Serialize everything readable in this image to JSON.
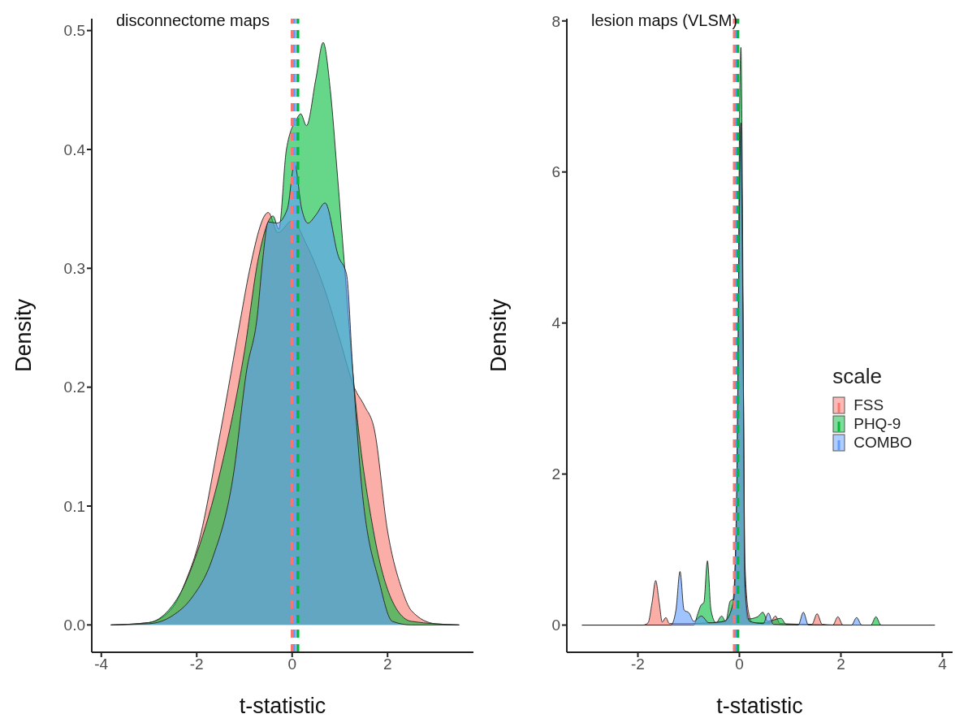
{
  "chart_data": [
    {
      "type": "area",
      "title": "disconnectome maps",
      "xlabel": "t-statistic",
      "ylabel": "Density",
      "xlim": [
        -4.2,
        3.8
      ],
      "xticks": [
        -4,
        -2,
        0,
        2
      ],
      "ylim": [
        -0.023,
        0.51
      ],
      "yticks": [
        {
          "value": 0,
          "label": "0.0"
        },
        0.1,
        0.2,
        0.3,
        0.4,
        0.5
      ],
      "legend": false,
      "series": [
        {
          "color": "#f8766d",
          "x": [
            -3.8,
            -3,
            -2.5,
            -2.2,
            -2,
            -1.5,
            -1.07,
            -0.9,
            -0.5,
            -0.3,
            0,
            0.3,
            0.7,
            1,
            1.3,
            1.52,
            1.72,
            2,
            2.3,
            2.5,
            3,
            3.5
          ],
          "values": [
            0,
            0.002,
            0.015,
            0.04,
            0.063,
            0.163,
            0.26,
            0.297,
            0.347,
            0.33,
            0.34,
            0.32,
            0.28,
            0.24,
            0.2,
            0.184,
            0.165,
            0.079,
            0.03,
            0.012,
            0.001,
            0
          ]
        },
        {
          "color": "#00ba38",
          "x": [
            -3.8,
            -3,
            -2.6,
            -2.3,
            -2,
            -1.5,
            -1,
            -0.7,
            -0.4,
            -0.28,
            -0.12,
            0.1,
            0.18,
            0.3,
            0.5,
            0.65,
            0.8,
            0.94,
            1.09,
            1.3,
            1.7,
            2.1,
            2.5,
            3.5
          ],
          "values": [
            0,
            0.002,
            0.012,
            0.03,
            0.06,
            0.13,
            0.23,
            0.31,
            0.344,
            0.333,
            0.4,
            0.426,
            0.43,
            0.42,
            0.46,
            0.49,
            0.45,
            0.383,
            0.306,
            0.2,
            0.08,
            0.02,
            0.003,
            0
          ]
        },
        {
          "color": "#619cff",
          "x": [
            -3.8,
            -3,
            -2.5,
            -2.12,
            -1.67,
            -1.24,
            -0.95,
            -0.73,
            -0.62,
            -0.5,
            -0.32,
            -0.1,
            0.05,
            0.2,
            0.33,
            0.5,
            0.69,
            0.97,
            1.14,
            1.27,
            1.44,
            1.84,
            2.1,
            2.5,
            3.5
          ],
          "values": [
            0,
            0.001,
            0.008,
            0.022,
            0.056,
            0.124,
            0.215,
            0.26,
            0.306,
            0.339,
            0.338,
            0.35,
            0.388,
            0.35,
            0.338,
            0.345,
            0.355,
            0.31,
            0.295,
            0.215,
            0.124,
            0.034,
            0.003,
            0,
            0
          ]
        }
      ],
      "ref_lines": [
        {
          "axis": "x",
          "value": 0,
          "color": "#f8766d",
          "line_style": "dashed"
        },
        {
          "axis": "x",
          "value": 0.05,
          "color": "#619cff",
          "line_style": "dashed"
        },
        {
          "axis": "x",
          "value": 0.12,
          "color": "#00ba38",
          "line_style": "dashed"
        }
      ]
    },
    {
      "type": "area",
      "title": "lesion maps (VLSM)",
      "xlabel": "t-statistic",
      "ylabel": "Density",
      "xlim": [
        -3.4,
        4.2
      ],
      "xticks": [
        -2,
        0,
        2,
        4
      ],
      "ylim": [
        -0.36,
        8.03
      ],
      "yticks": [
        0,
        2,
        4,
        6,
        8
      ],
      "legend": "right",
      "legend_title": "scale",
      "series": [
        {
          "name": "FSS",
          "color": "#f8766d",
          "x": [
            -3.1,
            -1.9,
            -1.8,
            -1.72,
            -1.65,
            -1.58,
            -1.52,
            -1.45,
            -1.38,
            -1,
            -0.6,
            -0.3,
            -0.15,
            -0.05,
            0,
            0.03,
            0.07,
            0.11,
            0.18,
            0.26,
            0.6,
            0.71,
            0.8,
            1.43,
            1.53,
            1.63,
            1.84,
            1.94,
            2.04,
            3.85
          ],
          "values": [
            0,
            0,
            0.03,
            0.3,
            0.59,
            0.3,
            0.04,
            0.1,
            0.02,
            0.02,
            0.03,
            0.05,
            0.2,
            1.5,
            5,
            6.6,
            4,
            0.8,
            0.17,
            0.03,
            0.03,
            0.12,
            0.02,
            0.01,
            0.15,
            0.01,
            0,
            0.11,
            0,
            0
          ]
        },
        {
          "name": "PHQ-9",
          "color": "#00ba38",
          "x": [
            -3.1,
            -0.9,
            -0.82,
            -0.76,
            -0.7,
            -0.63,
            -0.56,
            -0.46,
            -0.35,
            -0.27,
            -0.18,
            -0.1,
            -0.03,
            0,
            0.03,
            0.07,
            0.1,
            0.16,
            0.36,
            0.46,
            0.56,
            0.82,
            0.92,
            2.59,
            2.69,
            2.79,
            3.85
          ],
          "values": [
            0,
            0,
            0.15,
            0.26,
            0.3,
            0.85,
            0.2,
            0.03,
            0.12,
            0.05,
            0.32,
            0.35,
            3,
            6.5,
            7.65,
            4.5,
            0.8,
            0.08,
            0.11,
            0.17,
            0.05,
            0.09,
            0.01,
            0,
            0.11,
            0,
            0
          ]
        },
        {
          "name": "COMBO",
          "color": "#619cff",
          "x": [
            -3.1,
            -1.35,
            -1.25,
            -1.17,
            -1.09,
            -0.99,
            -0.9,
            -0.75,
            -0.6,
            -0.3,
            -0.12,
            -0.05,
            0,
            0.03,
            0.07,
            0.11,
            0.2,
            0.47,
            0.57,
            0.67,
            1.16,
            1.26,
            1.36,
            2.21,
            2.31,
            2.41,
            3.85
          ],
          "values": [
            0,
            0,
            0.2,
            0.71,
            0.2,
            0.16,
            0.05,
            0.12,
            0.03,
            0.05,
            0.3,
            2,
            5.5,
            6.65,
            4,
            0.5,
            0.05,
            0.02,
            0.16,
            0.01,
            0,
            0.17,
            0,
            0,
            0.1,
            0,
            0
          ]
        }
      ],
      "ref_lines": [
        {
          "axis": "x",
          "value": -0.1,
          "color": "#f8766d",
          "line_style": "dashed"
        },
        {
          "axis": "x",
          "value": -0.06,
          "color": "#619cff",
          "line_style": "dashed"
        },
        {
          "axis": "x",
          "value": -0.03,
          "color": "#00ba38",
          "line_style": "dashed"
        }
      ]
    }
  ]
}
